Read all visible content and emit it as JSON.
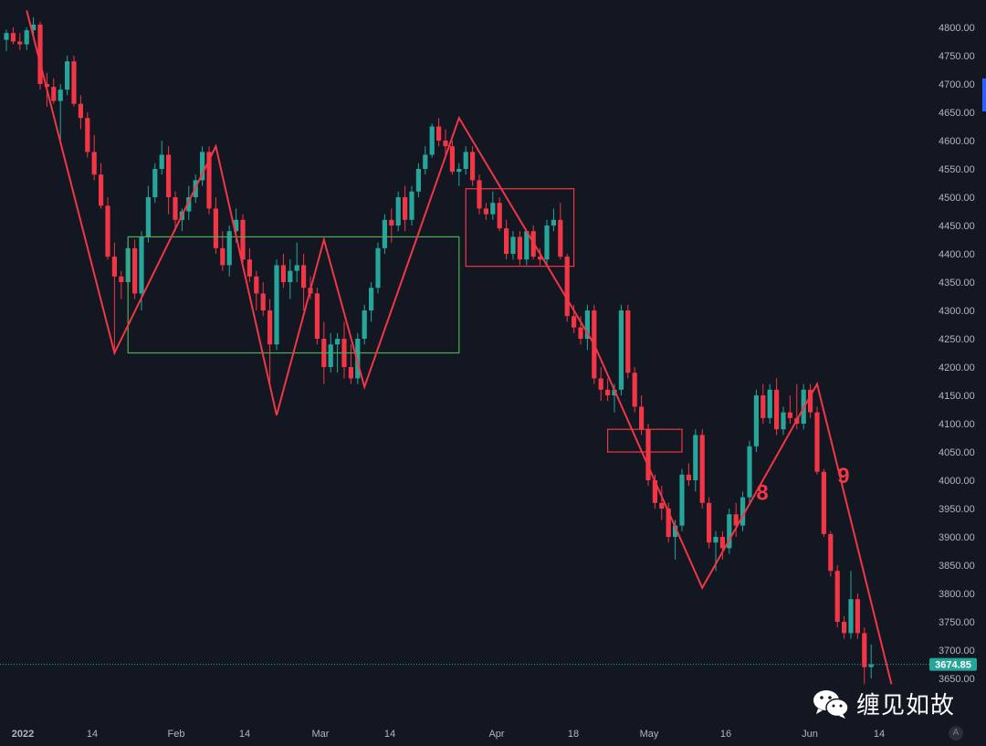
{
  "chart_data": {
    "type": "candlestick",
    "symbol_note": "",
    "y_axis": {
      "min": 3600,
      "max": 4850,
      "ticks": [
        3650,
        3700,
        3750,
        3800,
        3850,
        3900,
        3950,
        4000,
        4050,
        4100,
        4150,
        4200,
        4250,
        4300,
        4350,
        4400,
        4450,
        4500,
        4550,
        4600,
        4650,
        4700,
        4750,
        4800
      ]
    },
    "x_axis_labels": [
      "2022",
      "14",
      "Feb",
      "14",
      "Mar",
      "14",
      "Apr",
      "18",
      "May",
      "16",
      "Jun",
      "14"
    ],
    "last_price": "3674.85",
    "candles": [
      [
        4778,
        4796,
        4758,
        4790
      ],
      [
        4790,
        4800,
        4770,
        4775
      ],
      [
        4775,
        4790,
        4760,
        4770
      ],
      [
        4770,
        4800,
        4760,
        4795
      ],
      [
        4795,
        4818,
        4780,
        4805
      ],
      [
        4805,
        4810,
        4690,
        4700
      ],
      [
        4700,
        4720,
        4660,
        4695
      ],
      [
        4695,
        4710,
        4665,
        4670
      ],
      [
        4670,
        4700,
        4600,
        4690
      ],
      [
        4690,
        4750,
        4680,
        4740
      ],
      [
        4740,
        4750,
        4660,
        4665
      ],
      [
        4665,
        4680,
        4620,
        4640
      ],
      [
        4640,
        4650,
        4570,
        4580
      ],
      [
        4580,
        4610,
        4530,
        4540
      ],
      [
        4540,
        4560,
        4480,
        4485
      ],
      [
        4485,
        4500,
        4390,
        4395
      ],
      [
        4395,
        4420,
        4225,
        4360
      ],
      [
        4360,
        4370,
        4320,
        4350
      ],
      [
        4350,
        4420,
        4340,
        4410
      ],
      [
        4410,
        4425,
        4320,
        4330
      ],
      [
        4330,
        4440,
        4300,
        4430
      ],
      [
        4430,
        4520,
        4420,
        4500
      ],
      [
        4500,
        4560,
        4490,
        4550
      ],
      [
        4550,
        4600,
        4540,
        4575
      ],
      [
        4575,
        4590,
        4470,
        4500
      ],
      [
        4500,
        4510,
        4440,
        4460
      ],
      [
        4460,
        4480,
        4440,
        4475
      ],
      [
        4475,
        4520,
        4460,
        4500
      ],
      [
        4500,
        4540,
        4490,
        4530
      ],
      [
        4530,
        4590,
        4520,
        4580
      ],
      [
        4580,
        4590,
        4470,
        4480
      ],
      [
        4480,
        4500,
        4400,
        4410
      ],
      [
        4410,
        4440,
        4370,
        4380
      ],
      [
        4380,
        4450,
        4360,
        4440
      ],
      [
        4440,
        4480,
        4420,
        4460
      ],
      [
        4460,
        4470,
        4380,
        4390
      ],
      [
        4390,
        4410,
        4350,
        4360
      ],
      [
        4360,
        4370,
        4300,
        4330
      ],
      [
        4330,
        4350,
        4290,
        4300
      ],
      [
        4300,
        4320,
        4170,
        4240
      ],
      [
        4240,
        4390,
        4230,
        4380
      ],
      [
        4380,
        4400,
        4340,
        4350
      ],
      [
        4350,
        4390,
        4320,
        4370
      ],
      [
        4370,
        4420,
        4350,
        4380
      ],
      [
        4380,
        4400,
        4300,
        4340
      ],
      [
        4340,
        4360,
        4320,
        4330
      ],
      [
        4330,
        4340,
        4240,
        4250
      ],
      [
        4250,
        4280,
        4170,
        4200
      ],
      [
        4200,
        4260,
        4190,
        4240
      ],
      [
        4240,
        4260,
        4190,
        4250
      ],
      [
        4250,
        4280,
        4180,
        4200
      ],
      [
        4200,
        4240,
        4170,
        4180
      ],
      [
        4180,
        4260,
        4170,
        4250
      ],
      [
        4250,
        4310,
        4240,
        4300
      ],
      [
        4300,
        4350,
        4280,
        4340
      ],
      [
        4340,
        4420,
        4330,
        4410
      ],
      [
        4410,
        4470,
        4400,
        4460
      ],
      [
        4460,
        4480,
        4420,
        4450
      ],
      [
        4450,
        4510,
        4440,
        4500
      ],
      [
        4500,
        4520,
        4440,
        4460
      ],
      [
        4460,
        4520,
        4450,
        4510
      ],
      [
        4510,
        4560,
        4500,
        4550
      ],
      [
        4550,
        4590,
        4540,
        4575
      ],
      [
        4575,
        4630,
        4570,
        4625
      ],
      [
        4625,
        4640,
        4590,
        4600
      ],
      [
        4600,
        4620,
        4570,
        4590
      ],
      [
        4590,
        4600,
        4540,
        4545
      ],
      [
        4545,
        4560,
        4520,
        4550
      ],
      [
        4550,
        4590,
        4540,
        4580
      ],
      [
        4580,
        4590,
        4520,
        4530
      ],
      [
        4530,
        4540,
        4470,
        4480
      ],
      [
        4480,
        4490,
        4460,
        4470
      ],
      [
        4470,
        4510,
        4460,
        4490
      ],
      [
        4490,
        4500,
        4440,
        4445
      ],
      [
        4445,
        4460,
        4390,
        4400
      ],
      [
        4400,
        4440,
        4390,
        4430
      ],
      [
        4430,
        4440,
        4380,
        4390
      ],
      [
        4390,
        4440,
        4380,
        4440
      ],
      [
        4440,
        4450,
        4390,
        4395
      ],
      [
        4395,
        4410,
        4380,
        4390
      ],
      [
        4390,
        4460,
        4380,
        4450
      ],
      [
        4450,
        4480,
        4440,
        4460
      ],
      [
        4460,
        4490,
        4390,
        4395
      ],
      [
        4395,
        4400,
        4280,
        4290
      ],
      [
        4290,
        4310,
        4260,
        4270
      ],
      [
        4270,
        4290,
        4240,
        4250
      ],
      [
        4250,
        4310,
        4230,
        4300
      ],
      [
        4300,
        4310,
        4170,
        4180
      ],
      [
        4180,
        4200,
        4140,
        4160
      ],
      [
        4160,
        4180,
        4140,
        4150
      ],
      [
        4150,
        4170,
        4120,
        4160
      ],
      [
        4160,
        4310,
        4150,
        4300
      ],
      [
        4300,
        4310,
        4180,
        4190
      ],
      [
        4190,
        4200,
        4120,
        4130
      ],
      [
        4130,
        4150,
        4080,
        4090
      ],
      [
        4090,
        4100,
        3990,
        4000
      ],
      [
        4000,
        4010,
        3950,
        3960
      ],
      [
        3960,
        3990,
        3930,
        3950
      ],
      [
        3950,
        3960,
        3890,
        3900
      ],
      [
        3900,
        3930,
        3860,
        3920
      ],
      [
        3920,
        4020,
        3910,
        4010
      ],
      [
        4010,
        4030,
        3990,
        4000
      ],
      [
        4000,
        4090,
        3980,
        4080
      ],
      [
        4080,
        4090,
        3950,
        3960
      ],
      [
        3960,
        3970,
        3880,
        3890
      ],
      [
        3890,
        3910,
        3840,
        3900
      ],
      [
        3900,
        3910,
        3860,
        3880
      ],
      [
        3880,
        3950,
        3870,
        3940
      ],
      [
        3940,
        3960,
        3900,
        3920
      ],
      [
        3920,
        3980,
        3910,
        3970
      ],
      [
        3970,
        4070,
        3960,
        4060
      ],
      [
        4060,
        4160,
        4050,
        4150
      ],
      [
        4150,
        4170,
        4100,
        4110
      ],
      [
        4110,
        4170,
        4100,
        4160
      ],
      [
        4160,
        4180,
        4080,
        4090
      ],
      [
        4090,
        4130,
        4080,
        4120
      ],
      [
        4120,
        4150,
        4100,
        4110
      ],
      [
        4110,
        4170,
        4090,
        4100
      ],
      [
        4100,
        4170,
        4090,
        4160
      ],
      [
        4160,
        4170,
        4110,
        4120
      ],
      [
        4120,
        4130,
        4010,
        4015
      ],
      [
        4015,
        4020,
        3900,
        3905
      ],
      [
        3905,
        3910,
        3830,
        3840
      ],
      [
        3840,
        3850,
        3740,
        3750
      ],
      [
        3750,
        3760,
        3720,
        3730
      ],
      [
        3730,
        3840,
        3720,
        3790
      ],
      [
        3790,
        3800,
        3720,
        3730
      ],
      [
        3730,
        3740,
        3640,
        3670
      ],
      [
        3670,
        3710,
        3650,
        3675
      ]
    ],
    "zigzag": [
      [
        3,
        4830
      ],
      [
        16,
        4225
      ],
      [
        31,
        4590
      ],
      [
        40,
        4115
      ],
      [
        47,
        4425
      ],
      [
        53,
        4165
      ],
      [
        67,
        4640
      ],
      [
        87,
        4240
      ],
      [
        103,
        3810
      ],
      [
        120,
        4170
      ],
      [
        131,
        3640
      ]
    ],
    "boxes": [
      {
        "i1": 18,
        "i2": 67,
        "p1": 4430,
        "p2": 4225,
        "color": "#4caf50"
      },
      {
        "i1": 68,
        "i2": 84,
        "p1": 4515,
        "p2": 4378,
        "color": "#f23645"
      },
      {
        "i1": 89,
        "i2": 100,
        "p1": 4090,
        "p2": 4050,
        "color": "#f23645"
      }
    ],
    "wave_labels": [
      {
        "text": "8",
        "i": 111,
        "p": 3965
      },
      {
        "text": "9",
        "i": 123,
        "p": 3995
      }
    ],
    "colors": {
      "up": "#26a69a",
      "down": "#f23645",
      "zigzag": "#f23645",
      "background": "#131722"
    }
  },
  "watermark": {
    "text": "缠见如故",
    "icon": "wechat-icon"
  },
  "auto_button": "A"
}
